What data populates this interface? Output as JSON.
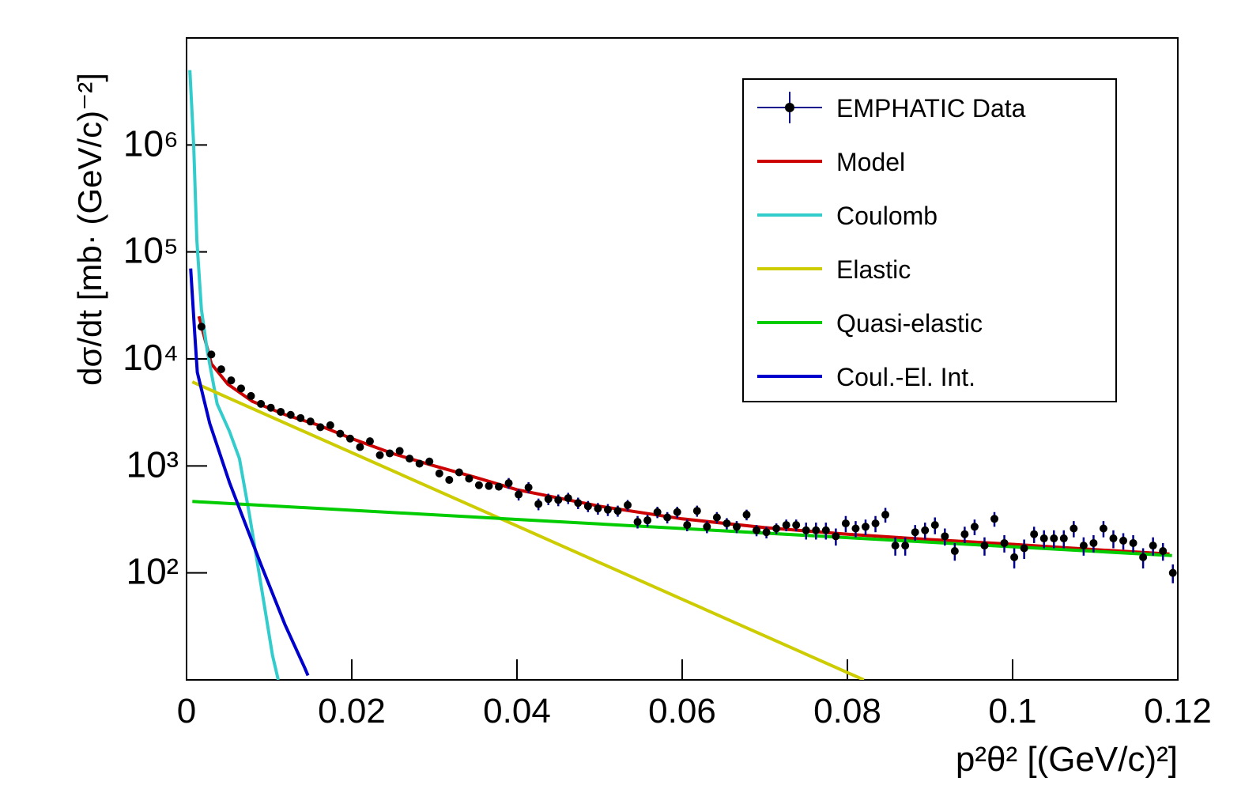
{
  "chart_data": {
    "type": "line",
    "x_label": "p²θ² [(GeV/c)²]",
    "y_label": "dσ/dt [mb· (GeV/c)⁻²]",
    "xlim": [
      0,
      0.12
    ],
    "xticks": [
      0,
      0.02,
      0.04,
      0.06,
      0.08,
      0.1,
      0.12
    ],
    "ylim": [
      10,
      10000000
    ],
    "ylog": true,
    "yticks": [
      {
        "value": 100,
        "label": "10²"
      },
      {
        "value": 1000,
        "label": "10³"
      },
      {
        "value": 10000,
        "label": "10⁴"
      },
      {
        "value": 100000,
        "label": "10⁵"
      },
      {
        "value": 1000000,
        "label": "10⁶"
      }
    ],
    "legend": "top-right",
    "series": [
      {
        "name": "EMPHATIC Data",
        "style": "points",
        "color": "#000000",
        "error_color": "#00008b",
        "x": [
          0.0018,
          0.003,
          0.0042,
          0.0054,
          0.0066,
          0.0078,
          0.009,
          0.0102,
          0.0114,
          0.0126,
          0.0138,
          0.015,
          0.0162,
          0.0174,
          0.0186,
          0.0198,
          0.021,
          0.0222,
          0.0234,
          0.0246,
          0.0258,
          0.027,
          0.0282,
          0.0294,
          0.0306,
          0.0318,
          0.033,
          0.0342,
          0.0354,
          0.0366,
          0.0378,
          0.039,
          0.0402,
          0.0414,
          0.0426,
          0.0438,
          0.045,
          0.0462,
          0.0474,
          0.0486,
          0.0498,
          0.051,
          0.0522,
          0.0534,
          0.0546,
          0.0558,
          0.057,
          0.0582,
          0.0594,
          0.0606,
          0.0618,
          0.063,
          0.0642,
          0.0654,
          0.0666,
          0.0678,
          0.069,
          0.0702,
          0.0714,
          0.0726,
          0.0738,
          0.075,
          0.0762,
          0.0774,
          0.0786,
          0.0798,
          0.081,
          0.0822,
          0.0834,
          0.0846,
          0.0858,
          0.087,
          0.0882,
          0.0894,
          0.0906,
          0.0918,
          0.093,
          0.0942,
          0.0954,
          0.0966,
          0.0978,
          0.099,
          0.1002,
          0.1014,
          0.1026,
          0.1038,
          0.105,
          0.1062,
          0.1074,
          0.1086,
          0.1098,
          0.111,
          0.1122,
          0.1134,
          0.1146,
          0.1158,
          0.117,
          0.1182,
          0.1194
        ],
        "values": [
          20000,
          11000,
          8000,
          6300,
          5300,
          4500,
          3800,
          3500,
          3200,
          3000,
          2800,
          2600,
          2300,
          2400,
          2000,
          1800,
          1500,
          1700,
          1260,
          1310,
          1380,
          1170,
          1050,
          1100,
          850,
          740,
          870,
          760,
          660,
          650,
          640,
          690,
          540,
          630,
          440,
          490,
          480,
          500,
          450,
          420,
          400,
          390,
          380,
          430,
          300,
          310,
          370,
          330,
          370,
          280,
          380,
          270,
          330,
          290,
          270,
          350,
          250,
          240,
          260,
          280,
          280,
          250,
          250,
          250,
          220,
          290,
          260,
          270,
          290,
          350,
          180,
          180,
          240,
          250,
          280,
          220,
          160,
          230,
          270,
          180,
          320,
          190,
          140,
          170,
          230,
          210,
          210,
          210,
          260,
          180,
          190,
          260,
          210,
          200,
          190,
          140,
          180,
          160,
          100
        ],
        "errors": [
          1000,
          600,
          400,
          300,
          250,
          200,
          170,
          160,
          150,
          140,
          140,
          180,
          160,
          170,
          140,
          130,
          110,
          120,
          90,
          95,
          100,
          85,
          75,
          80,
          65,
          55,
          65,
          55,
          50,
          50,
          50,
          80,
          65,
          75,
          55,
          60,
          60,
          60,
          55,
          50,
          50,
          50,
          45,
          50,
          40,
          40,
          45,
          40,
          45,
          35,
          45,
          35,
          40,
          35,
          35,
          40,
          30,
          30,
          30,
          35,
          35,
          45,
          45,
          45,
          40,
          50,
          45,
          45,
          50,
          55,
          35,
          35,
          40,
          45,
          50,
          40,
          30,
          40,
          45,
          35,
          50,
          35,
          30,
          35,
          40,
          40,
          40,
          40,
          45,
          35,
          35,
          45,
          40,
          35,
          35,
          30,
          35,
          30,
          20
        ]
      },
      {
        "name": "Model",
        "style": "line",
        "color": "#cc0000",
        "x": [
          0.0015,
          0.003,
          0.005,
          0.008,
          0.012,
          0.016,
          0.02,
          0.025,
          0.03,
          0.035,
          0.04,
          0.05,
          0.06,
          0.07,
          0.08,
          0.09,
          0.1,
          0.11,
          0.119
        ],
        "values": [
          25000,
          9000,
          5800,
          4000,
          3000,
          2400,
          1800,
          1300,
          1000,
          780,
          600,
          420,
          320,
          265,
          230,
          205,
          185,
          165,
          150
        ]
      },
      {
        "name": "Coulomb",
        "style": "line",
        "color": "#33cccc",
        "x": [
          0.0004,
          0.00086,
          0.00124,
          0.0018,
          0.0025,
          0.0037,
          0.0052,
          0.0064,
          0.0076,
          0.009,
          0.0104,
          0.0111
        ],
        "values": [
          5000000,
          1000000,
          130000,
          29000,
          12000,
          3800,
          2100,
          1170,
          355,
          78,
          17,
          10
        ]
      },
      {
        "name": "Elastic",
        "style": "line",
        "color": "#cccc00",
        "x": [
          0.0007,
          0.082
        ],
        "values": [
          6100,
          10
        ]
      },
      {
        "name": "Quasi-elastic",
        "style": "line",
        "color": "#00cc00",
        "x": [
          0.0007,
          0.1193
        ],
        "values": [
          465,
          145
        ]
      },
      {
        "name": "Coul.-El. Int.",
        "style": "line",
        "color": "#0000cc",
        "x": [
          0.0005,
          0.001,
          0.0013,
          0.0028,
          0.0052,
          0.009,
          0.0119,
          0.0143,
          0.0147
        ],
        "values": [
          70000,
          17000,
          7500,
          2500,
          700,
          120,
          33,
          13,
          11
        ]
      }
    ]
  }
}
